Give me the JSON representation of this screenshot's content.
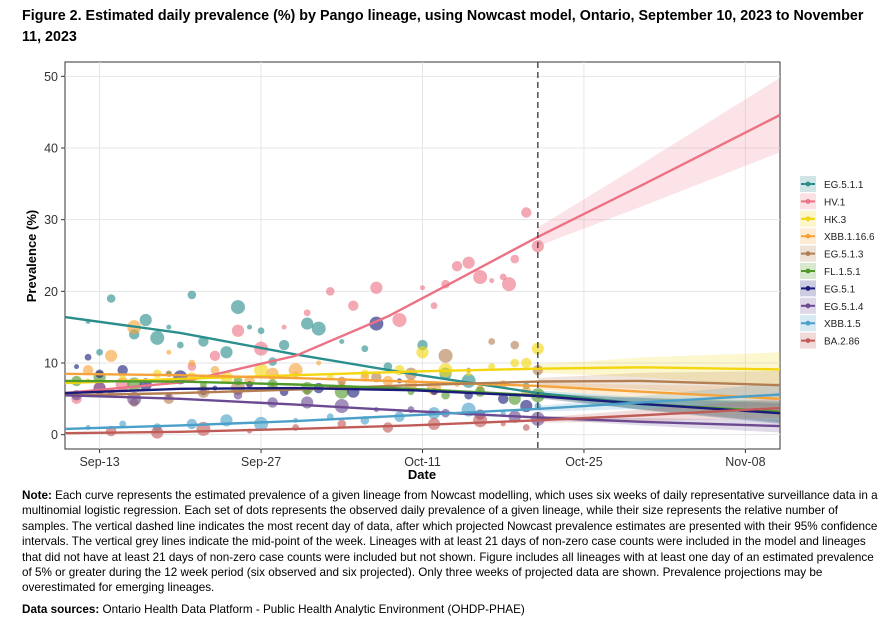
{
  "figure": {
    "title": "Figure 2. Estimated daily prevalence (%) by Pango lineage, using Nowcast model, Ontario, September 10, 2023 to November 11, 2023"
  },
  "chart_data": {
    "type": "line",
    "title": "Figure 2. Estimated daily prevalence (%) by Pango lineage, using Nowcast model, Ontario, September 10, 2023 to November 11, 2023",
    "xlabel": "Date",
    "ylabel": "Prevalence (%)",
    "x_range_days": [
      0,
      62
    ],
    "x_ticks": [
      {
        "day": 3,
        "label": "Sep-13"
      },
      {
        "day": 17,
        "label": "Sep-27"
      },
      {
        "day": 31,
        "label": "Oct-11"
      },
      {
        "day": 45,
        "label": "Oct-25"
      },
      {
        "day": 59,
        "label": "Nov-08"
      }
    ],
    "y_ticks": [
      0,
      10,
      20,
      30,
      40,
      50
    ],
    "ylim": [
      -2,
      52
    ],
    "nowcast_day": 41,
    "legend_position": "right",
    "series": [
      {
        "name": "EG.5.1.1",
        "color": "#2a8e8c",
        "estimate": [
          [
            0,
            16.4
          ],
          [
            10,
            14.2
          ],
          [
            20,
            11.2
          ],
          [
            30,
            8.5
          ],
          [
            41,
            5.8
          ],
          [
            50,
            4.3
          ],
          [
            62,
            3.1
          ]
        ],
        "ci_end_width": 1.6,
        "points": [
          [
            2,
            15.8
          ],
          [
            3,
            11.5
          ],
          [
            4,
            19
          ],
          [
            6,
            14
          ],
          [
            7,
            16
          ],
          [
            8,
            13.5
          ],
          [
            9,
            15
          ],
          [
            10,
            12.5
          ],
          [
            11,
            19.5
          ],
          [
            12,
            13
          ],
          [
            14,
            11.5
          ],
          [
            15,
            17.8
          ],
          [
            16,
            15
          ],
          [
            17,
            14.5
          ],
          [
            18,
            10.2
          ],
          [
            19,
            12.5
          ],
          [
            21,
            15.5
          ],
          [
            22,
            14.8
          ],
          [
            24,
            13
          ],
          [
            26,
            12
          ],
          [
            28,
            9.5
          ],
          [
            31,
            12.5
          ],
          [
            33,
            8.5
          ],
          [
            35,
            7.5
          ],
          [
            37,
            7
          ],
          [
            40,
            6.8
          ]
        ]
      },
      {
        "name": "HV.1",
        "color": "#ec7285",
        "estimate": [
          [
            0,
            5.8
          ],
          [
            10,
            7.3
          ],
          [
            20,
            11
          ],
          [
            28,
            16.5
          ],
          [
            34,
            21.6
          ],
          [
            41,
            27.6
          ],
          [
            50,
            34.8
          ],
          [
            62,
            44.6
          ]
        ],
        "ci_end_width": 5.2,
        "points": [
          [
            1,
            5
          ],
          [
            3,
            6.5
          ],
          [
            5,
            7
          ],
          [
            7,
            7.5
          ],
          [
            9,
            8.5
          ],
          [
            11,
            9.5
          ],
          [
            13,
            11
          ],
          [
            15,
            14.5
          ],
          [
            17,
            12
          ],
          [
            19,
            15
          ],
          [
            21,
            17
          ],
          [
            23,
            20
          ],
          [
            25,
            18
          ],
          [
            27,
            20.5
          ],
          [
            29,
            16
          ],
          [
            31,
            20.5
          ],
          [
            32,
            18
          ],
          [
            33,
            21
          ],
          [
            34,
            23.5
          ],
          [
            35,
            24
          ],
          [
            36,
            22
          ],
          [
            37,
            21.5
          ],
          [
            38,
            22
          ],
          [
            39,
            24.5
          ],
          [
            40,
            31
          ],
          [
            41,
            26.3
          ],
          [
            38.5,
            21
          ]
        ]
      },
      {
        "name": "HK.3",
        "color": "#f3d60f",
        "estimate": [
          [
            0,
            7.2
          ],
          [
            10,
            7.8
          ],
          [
            20,
            8.3
          ],
          [
            30,
            8.8
          ],
          [
            41,
            9.2
          ],
          [
            50,
            9.4
          ],
          [
            62,
            9.1
          ]
        ],
        "ci_end_width": 2.4,
        "points": [
          [
            2,
            7.5
          ],
          [
            5,
            8
          ],
          [
            8,
            8.5
          ],
          [
            11,
            8
          ],
          [
            14,
            8
          ],
          [
            17,
            9
          ],
          [
            20,
            8.5
          ],
          [
            23,
            8
          ],
          [
            26,
            8.5
          ],
          [
            29,
            9
          ],
          [
            31,
            11.5
          ],
          [
            33,
            9
          ],
          [
            35,
            8.5
          ],
          [
            37,
            9.5
          ],
          [
            39,
            10
          ],
          [
            40,
            10
          ],
          [
            41,
            12
          ]
        ]
      },
      {
        "name": "XBB.1.16.6",
        "color": "#f5a33a",
        "estimate": [
          [
            0,
            8.5
          ],
          [
            10,
            8.3
          ],
          [
            20,
            7.9
          ],
          [
            30,
            7.4
          ],
          [
            41,
            6.8
          ],
          [
            50,
            6
          ],
          [
            62,
            5
          ]
        ],
        "ci_end_width": 1.7,
        "points": [
          [
            2,
            9
          ],
          [
            4,
            11
          ],
          [
            6,
            15
          ],
          [
            9,
            11.5
          ],
          [
            11,
            10
          ],
          [
            13,
            9
          ],
          [
            16,
            7.5
          ],
          [
            18,
            8.5
          ],
          [
            20,
            9
          ],
          [
            22,
            10
          ],
          [
            24,
            7
          ],
          [
            26,
            8
          ],
          [
            28,
            7.5
          ],
          [
            30,
            7
          ],
          [
            32,
            6.5
          ],
          [
            34,
            7
          ],
          [
            36,
            6.5
          ],
          [
            38,
            7
          ],
          [
            40,
            6
          ]
        ]
      },
      {
        "name": "EG.5.1.3",
        "color": "#b37e50",
        "estimate": [
          [
            0,
            5.5
          ],
          [
            10,
            5.8
          ],
          [
            20,
            6.3
          ],
          [
            30,
            6.9
          ],
          [
            41,
            7.4
          ],
          [
            50,
            7.5
          ],
          [
            62,
            6.9
          ]
        ],
        "ci_end_width": 2.0,
        "points": [
          [
            1,
            5.5
          ],
          [
            4,
            6
          ],
          [
            6,
            4.5
          ],
          [
            9,
            5
          ],
          [
            12,
            6
          ],
          [
            15,
            6.5
          ],
          [
            18,
            7
          ],
          [
            21,
            6
          ],
          [
            24,
            7.5
          ],
          [
            27,
            8
          ],
          [
            30,
            8.5
          ],
          [
            33,
            11
          ],
          [
            35,
            9
          ],
          [
            37,
            13
          ],
          [
            39,
            12.5
          ],
          [
            41,
            9
          ]
        ]
      },
      {
        "name": "FL.1.5.1",
        "color": "#4f9a2b",
        "estimate": [
          [
            0,
            7.5
          ],
          [
            10,
            7.4
          ],
          [
            20,
            7
          ],
          [
            30,
            6.4
          ],
          [
            41,
            5.5
          ],
          [
            50,
            4.3
          ],
          [
            62,
            3.2
          ]
        ],
        "ci_end_width": 1.4,
        "points": [
          [
            1,
            7.5
          ],
          [
            3,
            8
          ],
          [
            6,
            7
          ],
          [
            9,
            8.5
          ],
          [
            12,
            7
          ],
          [
            15,
            7.5
          ],
          [
            18,
            7
          ],
          [
            21,
            6.5
          ],
          [
            24,
            6
          ],
          [
            27,
            6.5
          ],
          [
            30,
            6
          ],
          [
            33,
            5.5
          ],
          [
            36,
            6
          ],
          [
            39,
            5
          ],
          [
            41,
            5.5
          ]
        ]
      },
      {
        "name": "EG.5.1",
        "color": "#1b1b7a",
        "estimate": [
          [
            0,
            5.8
          ],
          [
            10,
            6.4
          ],
          [
            20,
            6.5
          ],
          [
            30,
            6.2
          ],
          [
            41,
            5.4
          ],
          [
            50,
            4.3
          ],
          [
            62,
            3.0
          ]
        ],
        "ci_end_width": 1.4,
        "points": [
          [
            1,
            9.5
          ],
          [
            2,
            10.8
          ],
          [
            3,
            8.5
          ],
          [
            5,
            9
          ],
          [
            7,
            7
          ],
          [
            10,
            8
          ],
          [
            13,
            6.5
          ],
          [
            16,
            7
          ],
          [
            19,
            6
          ],
          [
            22,
            6.5
          ],
          [
            25,
            6
          ],
          [
            27,
            15.5
          ],
          [
            29,
            7.5
          ],
          [
            32,
            6
          ],
          [
            35,
            5.5
          ],
          [
            38,
            5
          ],
          [
            40,
            4
          ]
        ]
      },
      {
        "name": "EG.5.1.4",
        "color": "#6b4a92",
        "estimate": [
          [
            0,
            5.5
          ],
          [
            10,
            5
          ],
          [
            20,
            4.2
          ],
          [
            30,
            3.3
          ],
          [
            41,
            2.4
          ],
          [
            50,
            1.8
          ],
          [
            62,
            1.2
          ]
        ],
        "ci_end_width": 0.9,
        "points": [
          [
            1,
            5.5
          ],
          [
            3,
            6.5
          ],
          [
            6,
            5
          ],
          [
            9,
            5.5
          ],
          [
            12,
            6
          ],
          [
            15,
            5.5
          ],
          [
            18,
            4.5
          ],
          [
            21,
            4.5
          ],
          [
            24,
            4
          ],
          [
            27,
            3.5
          ],
          [
            30,
            3.5
          ],
          [
            33,
            3
          ],
          [
            36,
            2.8
          ],
          [
            39,
            2.5
          ],
          [
            41,
            2.2
          ]
        ]
      },
      {
        "name": "XBB.1.5",
        "color": "#4aa0c8",
        "estimate": [
          [
            0,
            0.8
          ],
          [
            10,
            1.3
          ],
          [
            20,
            1.9
          ],
          [
            30,
            2.7
          ],
          [
            41,
            3.6
          ],
          [
            50,
            4.5
          ],
          [
            62,
            5.6
          ]
        ],
        "ci_end_width": 1.6,
        "points": [
          [
            2,
            1
          ],
          [
            5,
            1.5
          ],
          [
            8,
            1
          ],
          [
            11,
            1.5
          ],
          [
            14,
            2
          ],
          [
            17,
            1.5
          ],
          [
            20,
            2
          ],
          [
            23,
            2.5
          ],
          [
            26,
            2
          ],
          [
            29,
            2.5
          ],
          [
            32,
            3
          ],
          [
            35,
            3.5
          ],
          [
            38,
            3
          ],
          [
            41,
            4
          ]
        ]
      },
      {
        "name": "BA.2.86",
        "color": "#c05c58",
        "estimate": [
          [
            0,
            0.2
          ],
          [
            10,
            0.4
          ],
          [
            20,
            0.8
          ],
          [
            30,
            1.3
          ],
          [
            41,
            2
          ],
          [
            50,
            2.7
          ],
          [
            62,
            3.7
          ]
        ],
        "ci_end_width": 1.4,
        "points": [
          [
            4,
            0.5
          ],
          [
            8,
            0.3
          ],
          [
            12,
            0.8
          ],
          [
            16,
            0.5
          ],
          [
            20,
            1
          ],
          [
            24,
            1.5
          ],
          [
            28,
            1
          ],
          [
            32,
            1.5
          ],
          [
            36,
            2
          ],
          [
            38,
            1.5
          ],
          [
            40,
            1
          ]
        ]
      }
    ]
  },
  "note": {
    "label": "Note:",
    "text": " Each curve represents the estimated prevalence of a given lineage from Nowcast modelling, which uses six weeks of daily representative surveillance data in a multinomial logistic regression. Each set of dots represents the observed daily prevalence of a given lineage, while their size represents the relative number of samples. The vertical dashed line indicates the most recent day of data, after which projected Nowcast prevalence estimates are presented with their 95% confidence intervals. The vertical grey lines indicate the mid-point of the week. Lineages with at least 21 days of non-zero case counts were included in the model and lineages that did not have at least 21 days of non-zero case counts were included but not shown. Figure includes all lineages with at least one day of an estimated prevalence of 5% or greater during the 12 week period (six observed and six projected). Only three weeks of projected data are shown. Prevalence projections may be overestimated for emerging lineages."
  },
  "sources": {
    "label": "Data sources:",
    "text": " Ontario Health Data Platform - Public Health Analytic Environment (OHDP-PHAE)"
  }
}
